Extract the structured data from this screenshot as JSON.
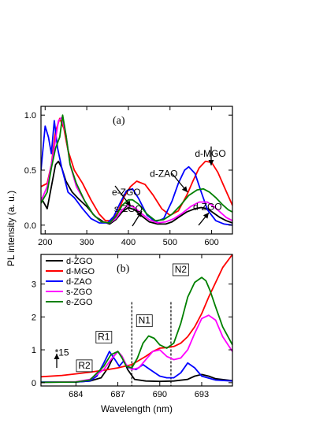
{
  "ylabel": "PL intensity (a. u.)",
  "colors": {
    "d-ZGO": "#000000",
    "d-MGO": "#ff0000",
    "d-ZAO": "#0000ff",
    "s-ZGO": "#ff00ff",
    "e-ZGO": "#008000"
  },
  "chart_data": [
    {
      "panel": "(a)",
      "type": "line",
      "xlabel": "",
      "xlim": [
        190,
        650
      ],
      "ylim": [
        -0.08,
        1.08
      ],
      "x_ticks": [
        200,
        300,
        400,
        500,
        600
      ],
      "y_ticks": [
        0.0,
        0.5,
        1.0
      ],
      "y_tick_labels": [
        "0.0",
        "0.5",
        "1.0"
      ],
      "series": [
        {
          "name": "d-ZGO",
          "x": [
            190,
            205,
            215,
            225,
            232,
            240,
            250,
            265,
            280,
            300,
            320,
            340,
            355,
            370,
            385,
            400,
            415,
            430,
            450,
            470,
            490,
            505,
            520,
            540,
            560,
            575,
            590,
            605,
            620,
            635,
            650
          ],
          "y": [
            0.25,
            0.15,
            0.35,
            0.55,
            0.58,
            0.52,
            0.4,
            0.3,
            0.24,
            0.17,
            0.08,
            0.03,
            0.01,
            0.05,
            0.12,
            0.16,
            0.14,
            0.09,
            0.03,
            0.01,
            0.01,
            0.03,
            0.07,
            0.12,
            0.15,
            0.16,
            0.15,
            0.11,
            0.07,
            0.04,
            0.02
          ]
        },
        {
          "name": "d-MGO",
          "x": [
            190,
            205,
            215,
            225,
            235,
            245,
            255,
            270,
            290,
            310,
            330,
            345,
            360,
            375,
            390,
            405,
            420,
            440,
            460,
            480,
            500,
            520,
            540,
            555,
            570,
            585,
            600,
            615,
            630,
            650
          ],
          "y": [
            0.35,
            0.38,
            0.55,
            0.85,
            0.97,
            0.88,
            0.68,
            0.5,
            0.38,
            0.23,
            0.1,
            0.04,
            0.04,
            0.12,
            0.26,
            0.35,
            0.4,
            0.37,
            0.27,
            0.15,
            0.09,
            0.13,
            0.27,
            0.4,
            0.52,
            0.58,
            0.57,
            0.48,
            0.35,
            0.18
          ]
        },
        {
          "name": "d-ZAO",
          "x": [
            190,
            200,
            208,
            215,
            222,
            230,
            240,
            255,
            270,
            290,
            310,
            330,
            350,
            365,
            380,
            395,
            410,
            425,
            445,
            465,
            485,
            505,
            520,
            535,
            545,
            560,
            575,
            590,
            610,
            630,
            650
          ],
          "y": [
            0.5,
            0.9,
            0.8,
            0.65,
            0.95,
            0.7,
            0.52,
            0.3,
            0.25,
            0.15,
            0.06,
            0.02,
            0.02,
            0.08,
            0.2,
            0.31,
            0.33,
            0.24,
            0.09,
            0.03,
            0.06,
            0.22,
            0.38,
            0.5,
            0.53,
            0.47,
            0.3,
            0.14,
            0.04,
            0.01,
            0.0
          ]
        },
        {
          "name": "s-ZGO",
          "x": [
            190,
            205,
            215,
            225,
            232,
            240,
            250,
            260,
            275,
            295,
            315,
            335,
            355,
            370,
            385,
            400,
            415,
            430,
            450,
            470,
            490,
            510,
            530,
            550,
            570,
            590,
            605,
            620,
            635,
            650
          ],
          "y": [
            0.22,
            0.35,
            0.55,
            0.78,
            0.95,
            0.98,
            0.82,
            0.55,
            0.35,
            0.22,
            0.1,
            0.03,
            0.02,
            0.06,
            0.14,
            0.18,
            0.16,
            0.11,
            0.05,
            0.02,
            0.03,
            0.06,
            0.11,
            0.17,
            0.21,
            0.21,
            0.17,
            0.12,
            0.07,
            0.04
          ]
        },
        {
          "name": "e-ZGO",
          "x": [
            190,
            205,
            215,
            225,
            235,
            242,
            250,
            260,
            275,
            295,
            315,
            335,
            355,
            370,
            385,
            400,
            410,
            425,
            445,
            465,
            485,
            505,
            525,
            545,
            565,
            580,
            595,
            610,
            625,
            640,
            650
          ],
          "y": [
            0.2,
            0.3,
            0.52,
            0.7,
            0.8,
            1.0,
            0.82,
            0.55,
            0.38,
            0.22,
            0.1,
            0.03,
            0.02,
            0.08,
            0.18,
            0.23,
            0.23,
            0.19,
            0.1,
            0.04,
            0.05,
            0.1,
            0.18,
            0.27,
            0.32,
            0.33,
            0.3,
            0.25,
            0.19,
            0.14,
            0.12
          ]
        }
      ],
      "annotations": [
        {
          "text": "d-MGO",
          "series": "d-MGO",
          "at": [
            597,
            0.62
          ]
        },
        {
          "text": "d-ZAO",
          "series": "d-ZAO",
          "at": [
            485,
            0.44
          ]
        },
        {
          "text": "e-ZGO",
          "series": "e-ZGO",
          "at": [
            395,
            0.27
          ]
        },
        {
          "text": "s-ZGO",
          "series": "s-ZGO",
          "at": [
            400,
            0.12
          ]
        },
        {
          "text": "d-ZGO",
          "series": "d-ZGO",
          "at": [
            590,
            0.14
          ]
        }
      ]
    },
    {
      "panel": "(b)",
      "type": "line",
      "xlabel": "Wavelength (nm)",
      "xlim": [
        681.5,
        695.2
      ],
      "ylim": [
        -0.1,
        3.9
      ],
      "x_ticks": [
        684,
        687,
        690,
        693
      ],
      "y_ticks": [
        0,
        1,
        2,
        3
      ],
      "legend": {
        "position": "top-left",
        "entries": [
          "d-ZGO",
          "d-MGO",
          "d-ZAO",
          "s-ZGO",
          "e-ZGO"
        ]
      },
      "series": [
        {
          "name": "d-ZGO",
          "x": [
            681.5,
            684,
            685,
            685.8,
            686.3,
            686.7,
            687.0,
            687.3,
            687.7,
            688.2,
            689,
            690,
            691,
            692,
            692.5,
            693,
            693.5,
            694,
            695.2
          ],
          "y": [
            0.01,
            0.02,
            0.05,
            0.15,
            0.45,
            0.8,
            0.95,
            0.8,
            0.4,
            0.1,
            0.05,
            0.04,
            0.05,
            0.1,
            0.2,
            0.25,
            0.2,
            0.12,
            0.06
          ]
        },
        {
          "name": "d-MGO",
          "x": [
            681.5,
            683,
            684,
            685,
            686,
            687,
            688,
            689,
            689.5,
            690,
            690.5,
            691,
            691.5,
            692,
            692.5,
            693,
            693.5,
            694,
            694.5,
            695.2
          ],
          "y": [
            0.18,
            0.22,
            0.27,
            0.32,
            0.38,
            0.45,
            0.55,
            0.8,
            0.95,
            1.05,
            1.07,
            1.1,
            1.2,
            1.4,
            1.7,
            2.1,
            2.6,
            3.05,
            3.5,
            3.9
          ]
        },
        {
          "name": "d-ZAO",
          "x": [
            681.5,
            684,
            685,
            685.5,
            686.0,
            686.4,
            686.8,
            687.1,
            687.4,
            687.8,
            688.3,
            688.8,
            689.3,
            690,
            690.5,
            691,
            691.5,
            692,
            692.5,
            693,
            694,
            695.2
          ],
          "y": [
            0.02,
            0.02,
            0.05,
            0.2,
            0.6,
            0.95,
            0.7,
            0.5,
            0.65,
            0.45,
            0.4,
            0.55,
            0.4,
            0.2,
            0.15,
            0.15,
            0.3,
            0.6,
            0.45,
            0.2,
            0.08,
            0.05
          ]
        },
        {
          "name": "s-ZGO",
          "x": [
            681.5,
            684,
            685,
            686,
            686.5,
            687,
            687.3,
            687.6,
            688,
            688.5,
            689,
            689.5,
            690,
            690.5,
            691,
            691.5,
            692,
            692.5,
            693,
            693.5,
            694,
            694.5,
            695.2
          ],
          "y": [
            0.01,
            0.03,
            0.1,
            0.4,
            0.7,
            0.95,
            0.8,
            0.55,
            0.4,
            0.45,
            0.7,
            0.95,
            1.0,
            0.8,
            0.7,
            0.75,
            1.0,
            1.5,
            1.95,
            2.05,
            1.9,
            1.4,
            0.95
          ]
        },
        {
          "name": "e-ZGO",
          "x": [
            681.5,
            684,
            685,
            686,
            686.5,
            687,
            687.3,
            687.6,
            688,
            688.4,
            688.8,
            689.2,
            689.6,
            690,
            690.5,
            691,
            691.5,
            692,
            692.5,
            693,
            693.3,
            693.6,
            694,
            694.5,
            695.2
          ],
          "y": [
            0.01,
            0.02,
            0.08,
            0.5,
            0.85,
            0.95,
            0.75,
            0.5,
            0.45,
            0.75,
            1.2,
            1.42,
            1.35,
            1.15,
            1.05,
            1.2,
            1.8,
            2.6,
            3.05,
            3.2,
            3.1,
            2.8,
            2.3,
            1.7,
            1.15
          ]
        }
      ],
      "annotations": [
        {
          "text": "R1",
          "boxed": true,
          "at": [
            686.0,
            1.3
          ]
        },
        {
          "text": "R2",
          "boxed": true,
          "at": [
            684.6,
            0.43
          ]
        },
        {
          "text": "N1",
          "boxed": true,
          "at": [
            688.9,
            1.8
          ]
        },
        {
          "text": "N2",
          "boxed": true,
          "at": [
            691.5,
            3.35
          ]
        },
        {
          "text": "*15",
          "at": [
            683.0,
            0.82
          ]
        }
      ],
      "dashed_lines_x": [
        688.0,
        690.8
      ]
    }
  ]
}
